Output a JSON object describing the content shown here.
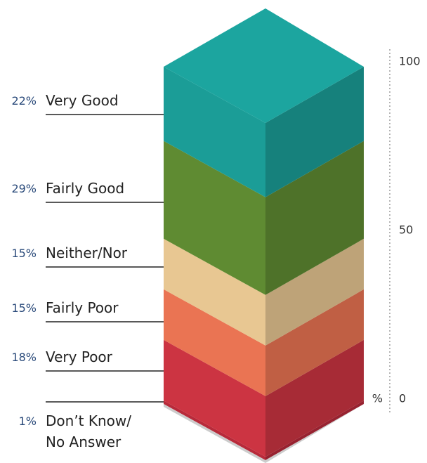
{
  "chart_data": {
    "type": "stacked-column-3d",
    "categories": [
      "Very Good",
      "Fairly Good",
      "Neither/Nor",
      "Fairly Poor",
      "Very Poor",
      "Don’t Know/ No Answer"
    ],
    "values": [
      22,
      29,
      15,
      15,
      18,
      1
    ],
    "value_labels": [
      "22%",
      "29%",
      "15%",
      "15%",
      "18%",
      "1%"
    ],
    "colors": [
      "#1b9d97",
      "#5f8b32",
      "#e8c792",
      "#ea7453",
      "#cc3442",
      "#b82a3a"
    ],
    "ylabel": "%",
    "ylim": [
      0,
      100
    ],
    "yticks": [
      0,
      50,
      100
    ]
  }
}
